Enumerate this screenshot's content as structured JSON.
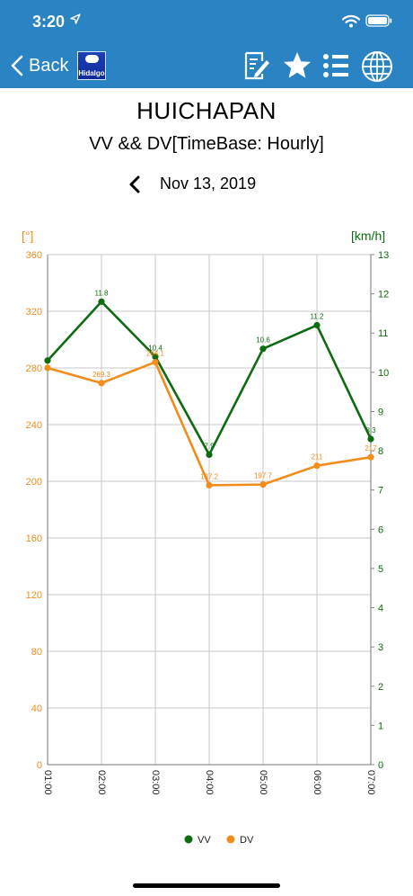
{
  "status": {
    "time": "3:20"
  },
  "nav": {
    "back_label": "Back",
    "logo_text": "Hidalgo"
  },
  "icons": [
    "edit-note-icon",
    "star-icon",
    "list-icon",
    "globe-icon"
  ],
  "header": {
    "station": "HUICHAPAN",
    "subtitle": "VV && DV[TimeBase: Hourly]",
    "date": "Nov 13, 2019"
  },
  "colors": {
    "topbar": "#2a84c3",
    "vv": "#0e6b10",
    "dv": "#f28c1b",
    "grid": "#c8c8c8"
  },
  "chart_data": {
    "type": "line",
    "categories": [
      "01:00",
      "02:00",
      "03:00",
      "04:00",
      "05:00",
      "06:00",
      "07:00"
    ],
    "left_axis": {
      "label": "[°]",
      "range": [
        0,
        360
      ],
      "ticks": [
        0,
        40,
        80,
        120,
        160,
        200,
        240,
        280,
        320,
        360
      ]
    },
    "right_axis": {
      "label": "[km/h]",
      "range": [
        0,
        13
      ],
      "ticks": [
        0,
        1,
        2,
        3,
        4,
        5,
        6,
        7,
        8,
        9,
        10,
        11,
        12,
        13
      ]
    },
    "series": [
      {
        "name": "VV",
        "axis": "right",
        "values": [
          10.3,
          11.8,
          10.4,
          7.9,
          10.6,
          11.2,
          8.3
        ],
        "labels": [
          "",
          "11.8",
          "10.4",
          "7.9",
          "10.6",
          "11.2",
          "8.3"
        ]
      },
      {
        "name": "DV",
        "axis": "left",
        "values": [
          280,
          269.3,
          284.1,
          197.2,
          197.7,
          211,
          217
        ],
        "labels": [
          "",
          "269.3",
          "284.1",
          "197.2",
          "197.7",
          "211",
          "217"
        ]
      }
    ],
    "grid": true,
    "legend": "bottom-center"
  }
}
